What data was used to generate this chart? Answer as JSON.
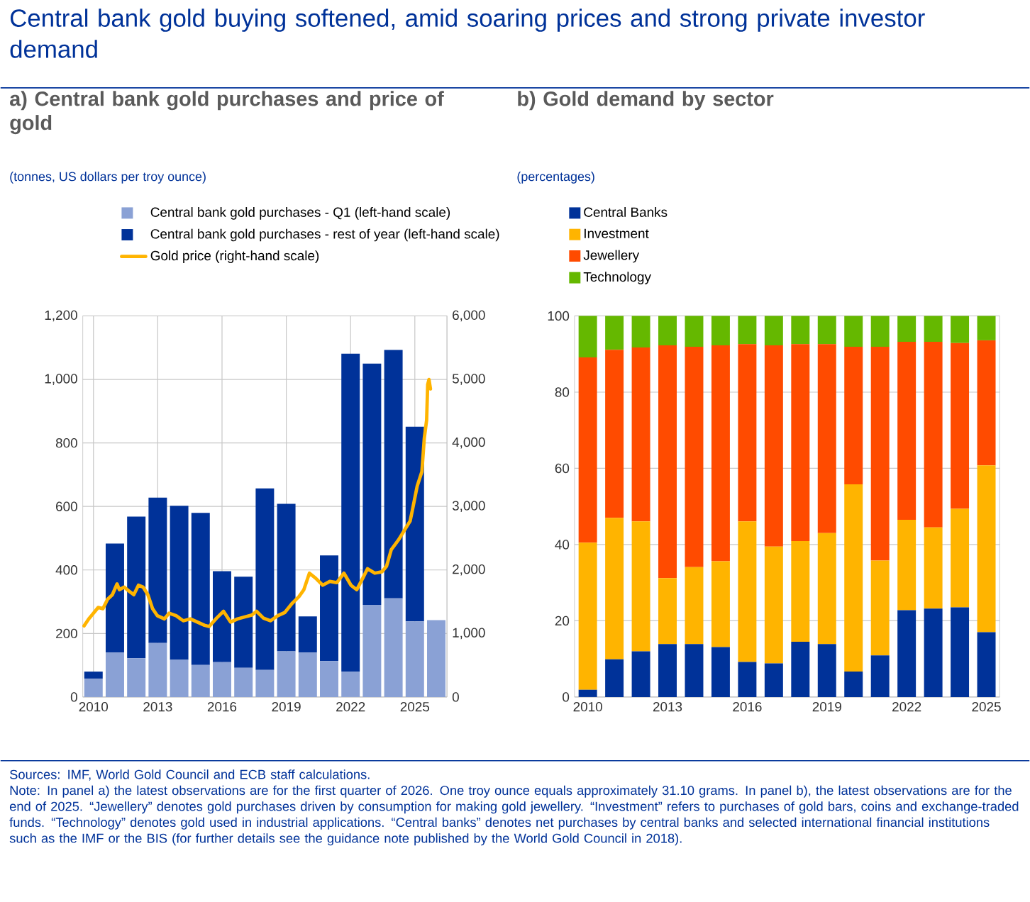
{
  "chart_data": [
    {
      "type": "bar",
      "title": "a) Central bank gold purchases and price of gold",
      "subtitle": "(tonnes, US dollars per troy ounce)",
      "annotations": [
        "Central bank gold buying softened, amid soaring prices and strong private investor demand",
        "Sources: IMF, World Gold Council and ECB staff calculations.",
        "Note: In panel a) the latest observations are for the first quarter of 2026. One troy ounce equals approximately 31.10 grams. In panel b), the latest observations are for the end of 2025. “Jewellery” denotes gold purchases driven by consumption for making gold jewellery. “Investment” refers to purchases of gold bars, coins and exchange-traded funds. “Technology” denotes gold used in industrial applications. “Central banks” denotes net purchases by central banks and selected international financial institutions such as the IMF or the BIS (for further details see the guidance note published by the World Gold Council in 2018)."
      ],
      "x": [
        2010,
        2011,
        2012,
        2013,
        2014,
        2015,
        2016,
        2017,
        2018,
        2019,
        2020,
        2021,
        2022,
        2023,
        2024,
        2025,
        2026
      ],
      "xlim": [
        2009.5,
        2026.5
      ],
      "xticks": [
        2010,
        2013,
        2016,
        2019,
        2022,
        2025
      ],
      "ylim": [
        0,
        1200
      ],
      "yticks": [
        0,
        200,
        400,
        600,
        800,
        {
          "value": 1000,
          "label": "1,000"
        },
        {
          "value": 1200,
          "label": "1,200"
        }
      ],
      "y2lim": [
        0,
        6000
      ],
      "y2ticks": [
        0,
        {
          "value": 1000,
          "label": "1,000"
        },
        {
          "value": 2000,
          "label": "2,000"
        },
        {
          "value": 3000,
          "label": "3,000"
        },
        {
          "value": 4000,
          "label": "4,000"
        },
        {
          "value": 5000,
          "label": "5,000"
        },
        {
          "value": 6000,
          "label": "6,000"
        }
      ],
      "stacked": true,
      "grid": true,
      "legend": "top",
      "series": [
        {
          "name": "Central bank gold purchases - Q1 (left-hand scale)",
          "color": "#8aa1d5",
          "values": [
            58,
            140,
            122,
            170,
            117,
            101,
            110,
            92,
            85,
            144,
            140,
            113,
            80,
            290,
            311,
            238,
            242
          ]
        },
        {
          "name": "Central bank gold purchases - rest of year (left-hand scale)",
          "color": "#003299",
          "values": [
            22,
            343,
            446,
            458,
            485,
            479,
            286,
            287,
            572,
            464,
            114,
            333,
            1001,
            760,
            782,
            613,
            null
          ]
        },
        {
          "name": "Gold price (right-hand scale)",
          "type": "line",
          "axis": "y2",
          "color": "#ffb400",
          "x": [
            2009.56,
            2009.78,
            2010.0,
            2010.22,
            2010.44,
            2010.66,
            2010.88,
            2011.1,
            2011.21,
            2011.43,
            2011.65,
            2011.88,
            2012.1,
            2012.32,
            2012.54,
            2012.76,
            2012.98,
            2013.31,
            2013.53,
            2013.86,
            2014.19,
            2014.52,
            2014.85,
            2015.18,
            2015.4,
            2015.74,
            2016.07,
            2016.4,
            2016.73,
            2017.06,
            2017.39,
            2017.61,
            2017.94,
            2018.27,
            2018.6,
            2018.93,
            2019.26,
            2019.59,
            2019.82,
            2020.08,
            2020.37,
            2020.7,
            2021.03,
            2021.36,
            2021.69,
            2022.02,
            2022.29,
            2022.57,
            2022.79,
            2023.13,
            2023.46,
            2023.68,
            2023.9,
            2024.23,
            2024.56,
            2024.78,
            2024.89,
            2025.11,
            2025.33,
            2025.44,
            2025.55,
            2025.6,
            2025.66,
            2025.73
          ],
          "values": [
            1120,
            1230,
            1320,
            1410,
            1390,
            1540,
            1610,
            1780,
            1690,
            1730,
            1670,
            1610,
            1760,
            1730,
            1610,
            1390,
            1280,
            1230,
            1320,
            1280,
            1200,
            1230,
            1180,
            1130,
            1110,
            1240,
            1350,
            1180,
            1230,
            1260,
            1290,
            1350,
            1240,
            1200,
            1280,
            1330,
            1470,
            1580,
            1690,
            1950,
            1870,
            1760,
            1820,
            1800,
            1950,
            1760,
            1690,
            1870,
            2020,
            1950,
            1970,
            2060,
            2320,
            2470,
            2650,
            2770,
            2950,
            3320,
            3550,
            4070,
            4360,
            4920,
            5000,
            4850
          ]
        }
      ]
    },
    {
      "type": "bar",
      "title": "b) Gold demand by sector",
      "subtitle": "(percentages)",
      "categories": [
        "2010",
        null,
        null,
        "2013",
        null,
        null,
        "2016",
        null,
        null,
        "2019",
        null,
        null,
        "2022",
        null,
        null,
        "2025"
      ],
      "ylim": [
        0,
        100
      ],
      "yticks": [
        0,
        20,
        40,
        60,
        80,
        100
      ],
      "stacked": true,
      "grid": "y",
      "legend": "top",
      "series": [
        {
          "name": "Central Banks",
          "color": "#003299",
          "values": [
            1.9,
            9.9,
            12.0,
            13.9,
            13.9,
            13.1,
            9.2,
            8.8,
            14.5,
            13.9,
            6.7,
            10.9,
            22.8,
            23.2,
            23.5,
            17.0
          ]
        },
        {
          "name": "Investment",
          "color": "#ffb400",
          "values": [
            38.6,
            37.1,
            34.1,
            17.3,
            20.2,
            22.5,
            36.9,
            30.7,
            26.4,
            29.1,
            49.1,
            24.9,
            23.7,
            21.3,
            25.9,
            43.8
          ]
        },
        {
          "name": "Jewellery",
          "color": "#ff4b00",
          "values": [
            48.6,
            44.1,
            45.6,
            61.1,
            57.8,
            56.7,
            46.5,
            52.8,
            51.7,
            49.6,
            36.1,
            56.1,
            46.7,
            48.7,
            43.5,
            32.8
          ]
        },
        {
          "name": "Technology",
          "color": "#65b800",
          "values": [
            10.9,
            8.9,
            8.3,
            7.7,
            8.1,
            7.7,
            7.4,
            7.7,
            7.4,
            7.4,
            8.1,
            8.1,
            6.8,
            6.8,
            7.1,
            6.4
          ]
        }
      ]
    }
  ]
}
